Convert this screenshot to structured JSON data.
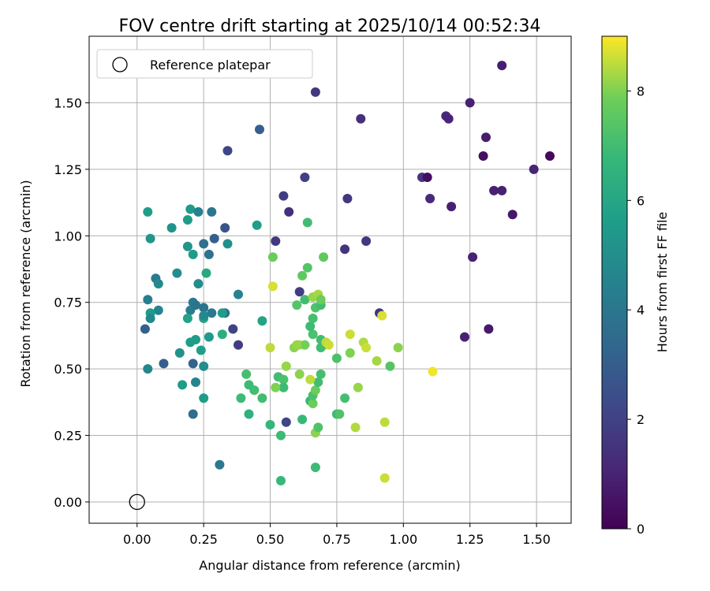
{
  "chart_data": {
    "type": "scatter",
    "title": "FOV centre drift starting at 2025/10/14 00:52:34",
    "xlabel": "Angular distance from reference (arcmin)",
    "ylabel": "Rotation from reference (arcmin)",
    "xlim": [
      -0.18,
      1.63
    ],
    "ylim": [
      -0.08,
      1.75
    ],
    "xticks": [
      "0.00",
      "0.25",
      "0.50",
      "0.75",
      "1.00",
      "1.25",
      "1.50"
    ],
    "yticks": [
      "0.00",
      "0.25",
      "0.50",
      "0.75",
      "1.00",
      "1.25",
      "1.50"
    ],
    "grid": true,
    "legend": {
      "position": "top-left",
      "entries": [
        "Reference platepar"
      ]
    },
    "reference_point": {
      "x": 0.0,
      "y": 0.0
    },
    "colorbar": {
      "label": "Hours from first FF file",
      "range": [
        0,
        9
      ],
      "ticks": [
        "0",
        "2",
        "4",
        "6",
        "8"
      ],
      "colormap": "viridis"
    },
    "series": [
      {
        "points": [
          [
            1.37,
            1.64,
            0.85
          ],
          [
            0.67,
            1.54,
            1.6
          ],
          [
            0.84,
            1.44,
            1.4
          ],
          [
            1.16,
            1.45,
            1.15
          ],
          [
            1.17,
            1.44,
            1.05
          ],
          [
            1.25,
            1.5,
            0.95
          ],
          [
            0.46,
            1.4,
            3.05
          ],
          [
            1.31,
            1.37,
            0.8
          ],
          [
            1.3,
            1.3,
            0.4
          ],
          [
            1.55,
            1.3,
            0.25
          ],
          [
            0.34,
            1.32,
            2.15
          ],
          [
            1.49,
            1.25,
            1.0
          ],
          [
            1.07,
            1.22,
            1.65
          ],
          [
            1.09,
            1.22,
            0.35
          ],
          [
            0.63,
            1.22,
            1.9
          ],
          [
            1.34,
            1.17,
            0.9
          ],
          [
            1.37,
            1.17,
            0.95
          ],
          [
            0.55,
            1.15,
            1.85
          ],
          [
            1.1,
            1.14,
            1.2
          ],
          [
            0.79,
            1.14,
            1.6
          ],
          [
            1.18,
            1.11,
            0.9
          ],
          [
            0.57,
            1.09,
            1.4
          ],
          [
            1.41,
            1.08,
            0.65
          ],
          [
            0.52,
            0.98,
            1.75
          ],
          [
            0.86,
            0.98,
            1.6
          ],
          [
            0.78,
            0.95,
            1.55
          ],
          [
            1.26,
            0.92,
            0.95
          ],
          [
            0.61,
            0.79,
            1.85
          ],
          [
            0.91,
            0.71,
            1.55
          ],
          [
            0.36,
            0.65,
            2.0
          ],
          [
            0.38,
            0.59,
            1.8
          ],
          [
            1.23,
            0.62,
            0.9
          ],
          [
            1.32,
            0.65,
            0.7
          ],
          [
            0.56,
            0.3,
            2.1
          ],
          [
            0.03,
            0.65,
            3.05
          ],
          [
            0.1,
            0.52,
            3.0
          ],
          [
            0.21,
            0.52,
            3.2
          ],
          [
            0.21,
            0.33,
            3.55
          ],
          [
            0.31,
            0.14,
            4.1
          ],
          [
            0.33,
            1.03,
            2.6
          ],
          [
            0.29,
            0.99,
            3.1
          ],
          [
            0.25,
            0.97,
            3.7
          ],
          [
            0.27,
            0.93,
            3.8
          ],
          [
            0.04,
            1.09,
            5.6
          ],
          [
            0.2,
            1.1,
            5.55
          ],
          [
            0.23,
            1.09,
            4.4
          ],
          [
            0.28,
            1.09,
            4.0
          ],
          [
            0.05,
            0.99,
            5.3
          ],
          [
            0.13,
            1.03,
            5.2
          ],
          [
            0.19,
            1.06,
            5.5
          ],
          [
            0.34,
            0.97,
            5.1
          ],
          [
            0.19,
            0.96,
            5.3
          ],
          [
            0.21,
            0.93,
            5.45
          ],
          [
            0.45,
            1.04,
            5.7
          ],
          [
            0.07,
            0.84,
            4.2
          ],
          [
            0.08,
            0.82,
            4.8
          ],
          [
            0.15,
            0.86,
            5.0
          ],
          [
            0.26,
            0.86,
            6.1
          ],
          [
            0.23,
            0.82,
            4.9
          ],
          [
            0.38,
            0.78,
            4.5
          ],
          [
            0.04,
            0.76,
            4.3
          ],
          [
            0.21,
            0.75,
            4.2
          ],
          [
            0.2,
            0.72,
            4.3
          ],
          [
            0.22,
            0.74,
            3.85
          ],
          [
            0.25,
            0.73,
            3.9
          ],
          [
            0.28,
            0.71,
            4.1
          ],
          [
            0.33,
            0.71,
            3.6
          ],
          [
            0.08,
            0.72,
            4.6
          ],
          [
            0.05,
            0.71,
            5.5
          ],
          [
            0.05,
            0.69,
            4.8
          ],
          [
            0.19,
            0.69,
            5.8
          ],
          [
            0.25,
            0.69,
            5.9
          ],
          [
            0.25,
            0.7,
            4.8
          ],
          [
            0.32,
            0.71,
            5.6
          ],
          [
            0.47,
            0.68,
            5.9
          ],
          [
            0.32,
            0.63,
            6.3
          ],
          [
            0.27,
            0.62,
            5.5
          ],
          [
            0.2,
            0.6,
            5.6
          ],
          [
            0.22,
            0.61,
            5.6
          ],
          [
            0.24,
            0.57,
            5.7
          ],
          [
            0.16,
            0.56,
            5.1
          ],
          [
            0.04,
            0.5,
            4.7
          ],
          [
            0.25,
            0.51,
            5.0
          ],
          [
            0.22,
            0.45,
            4.6
          ],
          [
            0.17,
            0.44,
            5.6
          ],
          [
            0.25,
            0.39,
            5.6
          ],
          [
            0.54,
            0.08,
            6.8
          ],
          [
            0.67,
            0.13,
            6.9
          ],
          [
            0.54,
            0.25,
            6.9
          ],
          [
            0.62,
            0.31,
            6.8
          ],
          [
            0.5,
            0.29,
            6.7
          ],
          [
            0.42,
            0.33,
            6.5
          ],
          [
            0.39,
            0.39,
            6.9
          ],
          [
            0.47,
            0.39,
            7.0
          ],
          [
            0.44,
            0.42,
            7.05
          ],
          [
            0.42,
            0.44,
            6.9
          ],
          [
            0.41,
            0.48,
            7.1
          ],
          [
            0.53,
            0.47,
            7.0
          ],
          [
            0.55,
            0.46,
            7.2
          ],
          [
            0.55,
            0.43,
            6.9
          ],
          [
            0.52,
            0.43,
            8.0
          ],
          [
            0.61,
            0.48,
            8.1
          ],
          [
            0.65,
            0.38,
            6.8
          ],
          [
            0.66,
            0.37,
            7.8
          ],
          [
            0.66,
            0.4,
            7.2
          ],
          [
            0.67,
            0.42,
            7.8
          ],
          [
            0.68,
            0.45,
            7.0
          ],
          [
            0.69,
            0.48,
            7.1
          ],
          [
            0.65,
            0.46,
            8.5
          ],
          [
            0.67,
            0.26,
            8.1
          ],
          [
            0.68,
            0.28,
            7.3
          ],
          [
            0.75,
            0.33,
            6.9
          ],
          [
            0.76,
            0.33,
            7.3
          ],
          [
            0.78,
            0.39,
            7.1
          ],
          [
            0.8,
            0.56,
            8.0
          ],
          [
            0.75,
            0.54,
            7.2
          ],
          [
            0.7,
            0.59,
            7.1
          ],
          [
            0.69,
            0.61,
            7.0
          ],
          [
            0.69,
            0.58,
            7.0
          ],
          [
            0.66,
            0.63,
            7.2
          ],
          [
            0.65,
            0.66,
            6.9
          ],
          [
            0.66,
            0.69,
            7.1
          ],
          [
            0.6,
            0.74,
            7.4
          ],
          [
            0.63,
            0.76,
            7.0
          ],
          [
            0.67,
            0.73,
            7.3
          ],
          [
            0.69,
            0.74,
            7.0
          ],
          [
            0.66,
            0.77,
            8.2
          ],
          [
            0.68,
            0.78,
            8.3
          ],
          [
            0.69,
            0.76,
            7.8
          ],
          [
            0.56,
            0.51,
            8.2
          ],
          [
            0.59,
            0.58,
            8.1
          ],
          [
            0.61,
            0.59,
            8.4
          ],
          [
            0.63,
            0.59,
            7.9
          ],
          [
            0.71,
            0.6,
            8.5
          ],
          [
            0.72,
            0.59,
            8.6
          ],
          [
            0.8,
            0.63,
            8.6
          ],
          [
            0.85,
            0.6,
            8.4
          ],
          [
            0.86,
            0.58,
            8.6
          ],
          [
            0.9,
            0.53,
            8.3
          ],
          [
            0.92,
            0.7,
            8.7
          ],
          [
            0.95,
            0.51,
            7.4
          ],
          [
            0.98,
            0.58,
            8.1
          ],
          [
            0.83,
            0.43,
            8.2
          ],
          [
            0.82,
            0.28,
            8.4
          ],
          [
            0.93,
            0.3,
            8.5
          ],
          [
            0.93,
            0.09,
            8.6
          ],
          [
            1.11,
            0.49,
            8.9
          ],
          [
            0.5,
            0.58,
            8.5
          ],
          [
            0.51,
            0.81,
            8.7
          ],
          [
            0.62,
            0.85,
            7.6
          ],
          [
            0.64,
            0.88,
            7.4
          ],
          [
            0.7,
            0.92,
            7.6
          ],
          [
            0.51,
            0.92,
            7.8
          ],
          [
            0.64,
            1.05,
            7.0
          ],
          [
            0.6,
            0.59,
            8.2
          ]
        ]
      }
    ]
  }
}
